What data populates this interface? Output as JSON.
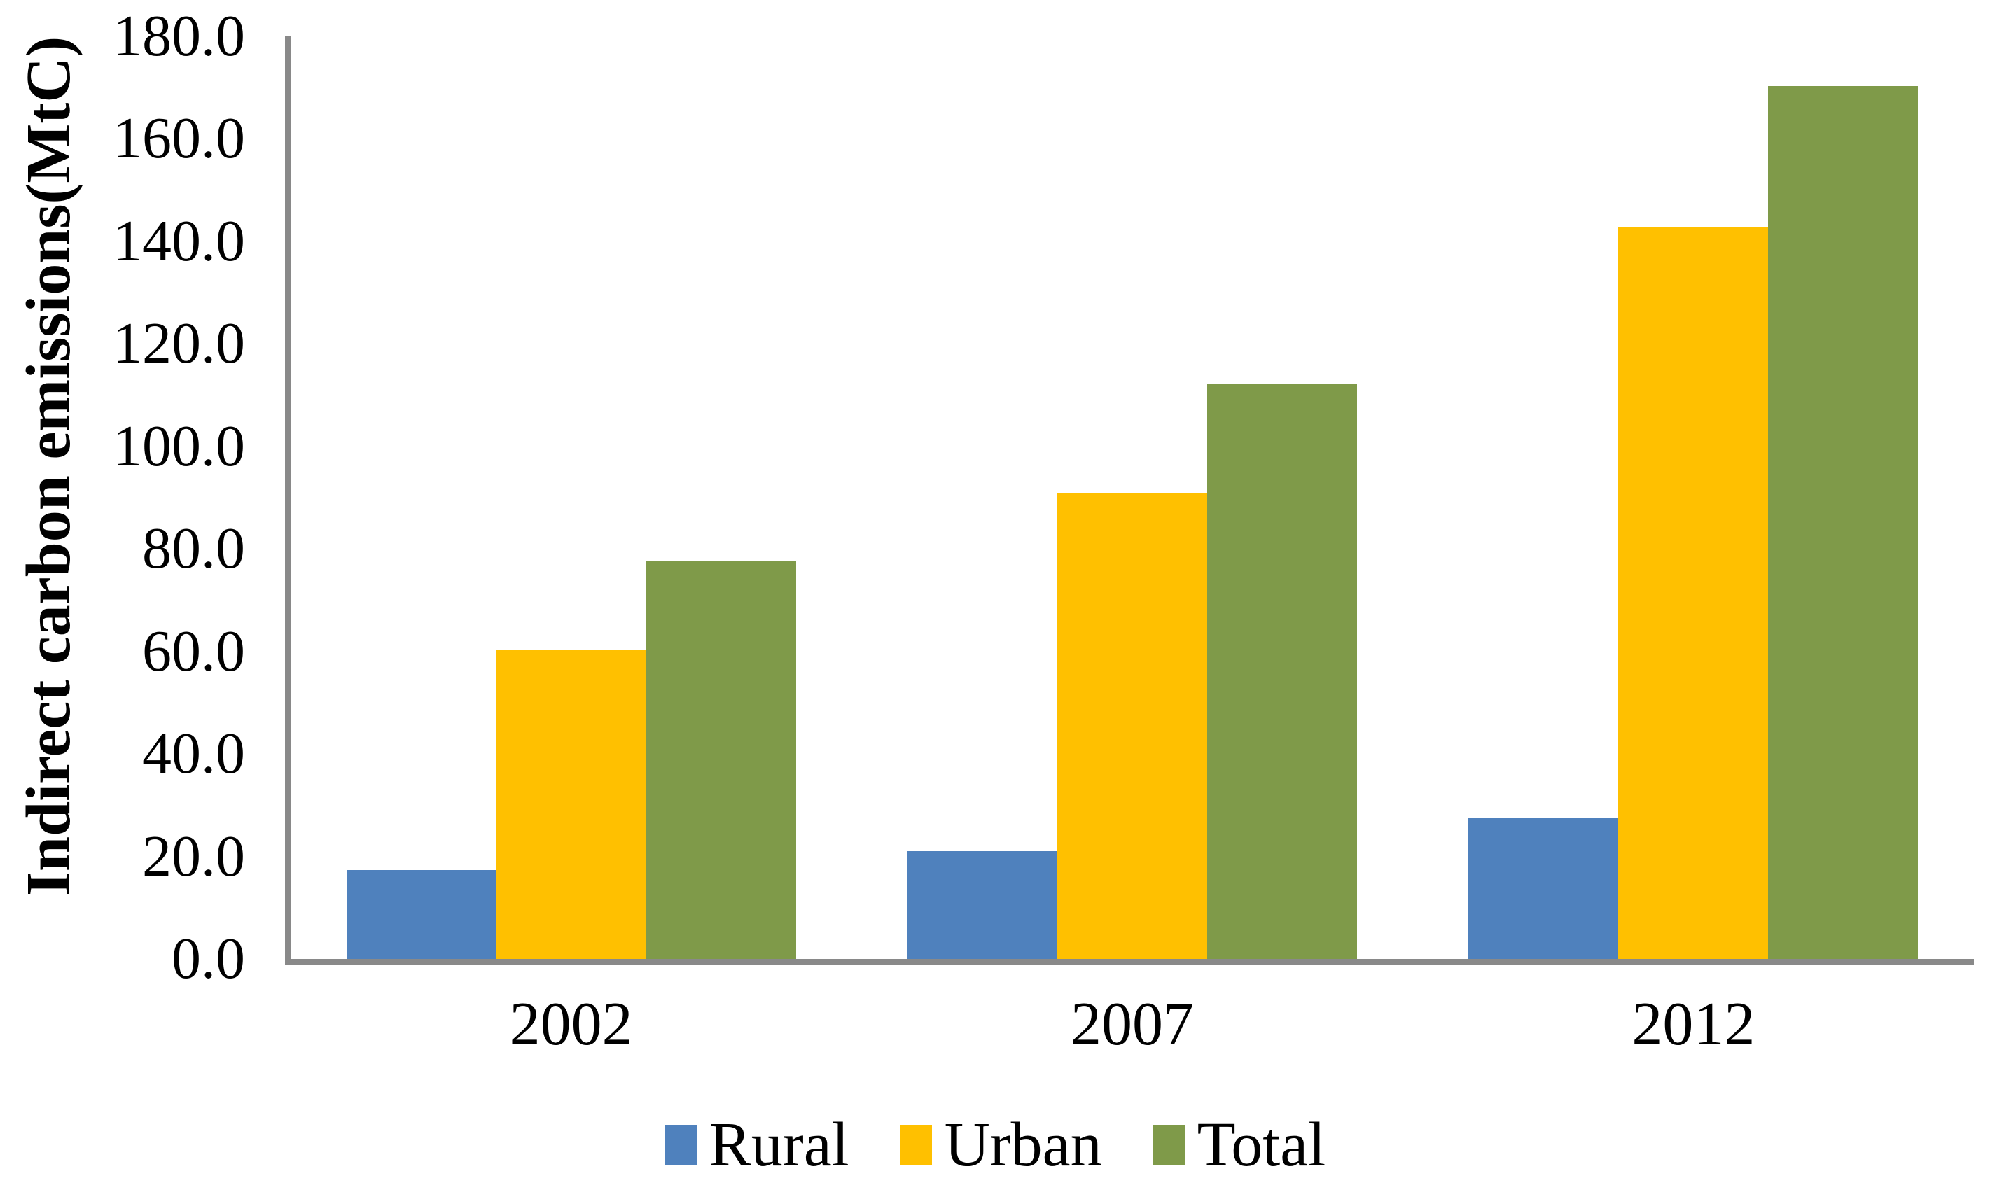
{
  "chart_data": {
    "type": "bar",
    "title": "",
    "xlabel": "",
    "ylabel": "Indirect carbon emissions(MtC)",
    "categories": [
      "2002",
      "2007",
      "2012"
    ],
    "series": [
      {
        "name": "Rural",
        "color": "#4F81BD",
        "values": [
          17.4,
          21.1,
          27.5
        ]
      },
      {
        "name": "Urban",
        "color": "#FFC000",
        "values": [
          60.2,
          91.0,
          142.8
        ]
      },
      {
        "name": "Total",
        "color": "#7F9A49",
        "values": [
          77.6,
          112.2,
          170.3
        ]
      }
    ],
    "ylim": [
      0,
      180
    ],
    "ytick_step": 20,
    "ytick_labels": [
      "0.0",
      "20.0",
      "40.0",
      "60.0",
      "80.0",
      "100.0",
      "120.0",
      "140.0",
      "160.0",
      "180.0"
    ],
    "grid": false,
    "legend_position": "bottom-center",
    "colors": {
      "axis": "#898989",
      "text": "#000000",
      "background": "#FFFFFF"
    }
  }
}
